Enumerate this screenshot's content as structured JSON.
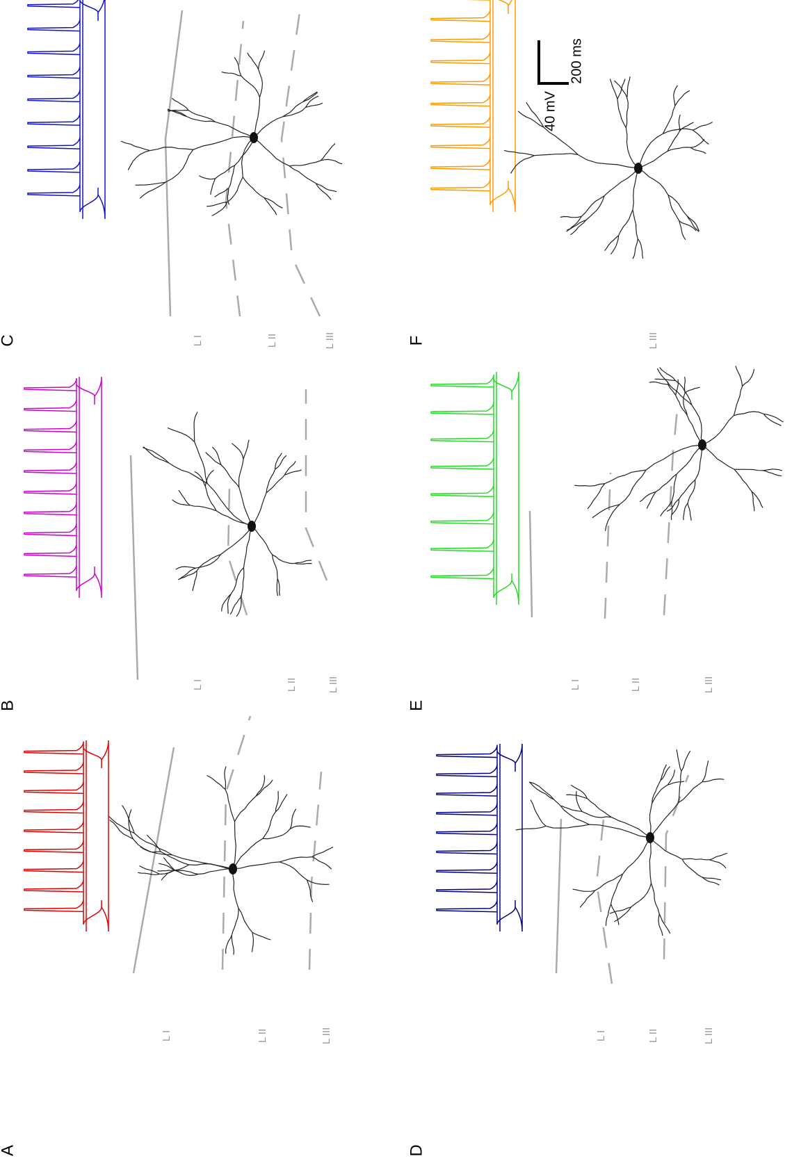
{
  "panels": [
    {
      "label": "A",
      "layers": [
        "L I",
        "L II",
        "L III"
      ]
    },
    {
      "label": "B",
      "layers": [
        "L I",
        "L II",
        "L III"
      ]
    },
    {
      "label": "C",
      "layers": [
        "L I",
        "L II",
        "L III"
      ]
    },
    {
      "label": "D",
      "layers": [
        "L I",
        "L II",
        "L III"
      ]
    },
    {
      "label": "E",
      "layers": [
        "L I",
        "L II",
        "L III"
      ]
    },
    {
      "label": "F",
      "layers": [
        "L III"
      ]
    }
  ],
  "scale_bar": {
    "voltage": "40 mV",
    "time": "200 ms"
  }
}
